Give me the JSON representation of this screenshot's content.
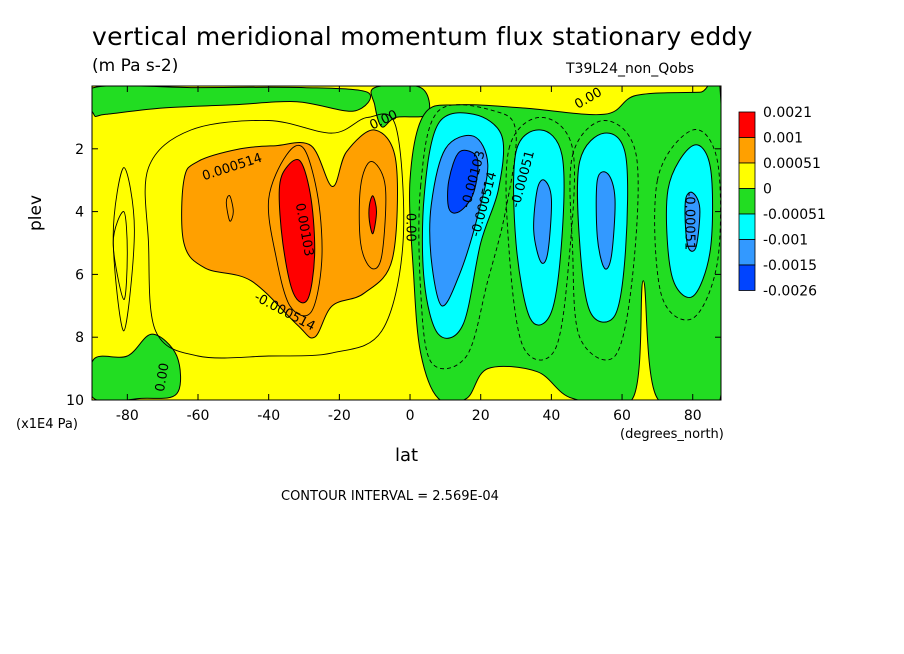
{
  "chart_data": {
    "type": "heatmap",
    "title": "vertical meridional momentum flux stationary eddy",
    "units": "(m Pa s-2)",
    "run_label": "T39L24_non_Qobs",
    "xlabel": "lat",
    "ylabel": "plev",
    "x_unit": "(degrees_north)",
    "y_unit": "(x1E4 Pa)",
    "contour_interval_text": "CONTOUR INTERVAL = 2.569E-04",
    "xlim": [
      -90,
      88
    ],
    "ylim": [
      10,
      0
    ],
    "xticks": [
      -80,
      -60,
      -40,
      -20,
      0,
      20,
      40,
      60,
      80
    ],
    "yticks": [
      2,
      4,
      6,
      8,
      10
    ],
    "legend": {
      "placement": "right",
      "levels": [
        "0.0021",
        "0.001",
        "0.00051",
        "0",
        "-0.00051",
        "-0.001",
        "-0.0015",
        "-0.0026"
      ],
      "colors": [
        "#ff0000",
        "#ffa000",
        "#ffff00",
        "#22dd22",
        "#00ffff",
        "#3399ff",
        "#0044ff"
      ]
    },
    "contour_labels": [
      {
        "text": "0.000514",
        "lat": -50,
        "plev": 2.7
      },
      {
        "text": "0.00103",
        "lat": -31,
        "plev": 4.6
      },
      {
        "text": "-0.000514",
        "lat": -36,
        "plev": 7.3
      },
      {
        "text": "0.00",
        "lat": -7,
        "plev": 1.2
      },
      {
        "text": "0.00",
        "lat": -1,
        "plev": 4.5
      },
      {
        "text": "0.00",
        "lat": -69,
        "plev": 9.3
      },
      {
        "text": "-0.00103",
        "lat": 19,
        "plev": 3.0
      },
      {
        "text": "-0.000514",
        "lat": 22,
        "plev": 3.8
      },
      {
        "text": "-0.00051",
        "lat": 33,
        "plev": 3.0
      },
      {
        "text": "-0.00051",
        "lat": 78,
        "plev": 4.3
      },
      {
        "text": "0.00",
        "lat": 51,
        "plev": 0.5
      }
    ],
    "features": [
      {
        "kind": "max",
        "lat": -33,
        "plev": 4.5,
        "value": 0.0021
      },
      {
        "kind": "max",
        "lat": -11,
        "plev": 4.0,
        "value": 0.0021
      },
      {
        "kind": "max",
        "lat": -52,
        "plev": 4.0,
        "value": 0.00051
      },
      {
        "kind": "max",
        "lat": -81,
        "plev": 5.0,
        "value": 0.0
      },
      {
        "kind": "min",
        "lat": 14,
        "plev": 3.1,
        "value": -0.0026
      },
      {
        "kind": "min",
        "lat": 37,
        "plev": 4.5,
        "value": -0.0015
      },
      {
        "kind": "min",
        "lat": 55,
        "plev": 4.5,
        "value": -0.0015
      },
      {
        "kind": "min",
        "lat": 80,
        "plev": 4.2,
        "value": -0.0015
      }
    ]
  }
}
